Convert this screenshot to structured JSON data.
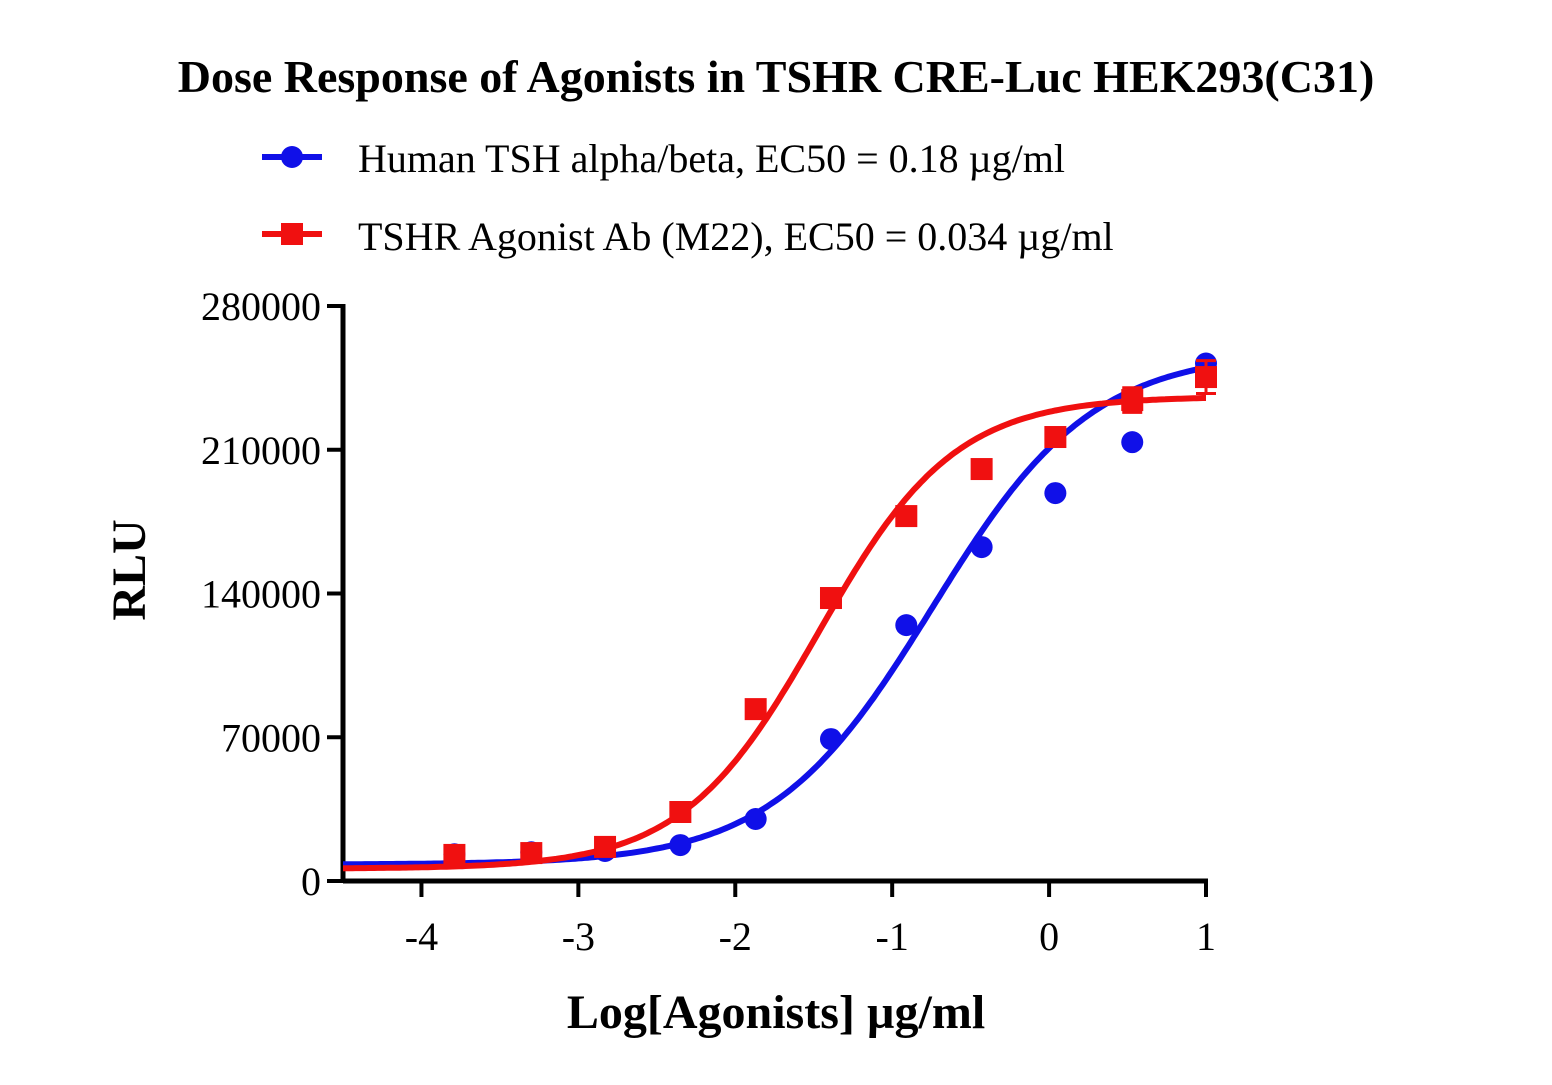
{
  "chart_data": {
    "type": "scatter",
    "title": "Dose Response of Agonists in TSHR CRE-Luc HEK293(C31)",
    "xlabel": "Log[Agonists] µg/ml",
    "ylabel": "RLU",
    "xlim": [
      -4.5,
      1
    ],
    "ylim": [
      0,
      280000
    ],
    "xticks": [
      -4,
      -3,
      -2,
      -1,
      0,
      1
    ],
    "xtick_labels": [
      "-4",
      "-3",
      "-2",
      "-1",
      "0",
      "1"
    ],
    "yticks": [
      0,
      70000,
      140000,
      210000,
      280000
    ],
    "ytick_labels": [
      "0",
      "70000",
      "140000",
      "210000",
      "280000"
    ],
    "grid": false,
    "legend_position": "top",
    "series": [
      {
        "name": "Human TSH alpha/beta, EC50 = 0.18 µg/ml",
        "color": "#1010e8",
        "marker": "circle",
        "x": [
          -3.79,
          -3.3,
          -2.83,
          -2.35,
          -1.87,
          -1.39,
          -0.91,
          -0.43,
          0.04,
          0.53,
          1.0
        ],
        "y": [
          13000,
          14000,
          14600,
          17500,
          30200,
          69100,
          124600,
          162600,
          188900,
          213700,
          252000
        ],
        "fit": {
          "bottom": 8000,
          "top": 258000,
          "logEC50": -0.745,
          "hill": 0.85
        }
      },
      {
        "name": "TSHR Agonist Ab (M22), EC50 = 0.034 µg/ml",
        "color": "#f01010",
        "marker": "square",
        "x": [
          -3.79,
          -3.3,
          -2.83,
          -2.35,
          -1.87,
          -1.39,
          -0.91,
          -0.43,
          0.04,
          0.53,
          1.0
        ],
        "y": [
          12700,
          13600,
          16600,
          33600,
          83700,
          137800,
          177700,
          200600,
          216200,
          234200,
          245400
        ],
        "yerr": [
          2000,
          2000,
          2000,
          3000,
          3000,
          3000,
          3000,
          3000,
          3000,
          6000,
          8000
        ],
        "fit": {
          "bottom": 6000,
          "top": 236000,
          "logEC50": -1.47,
          "hill": 1.0
        }
      }
    ]
  }
}
